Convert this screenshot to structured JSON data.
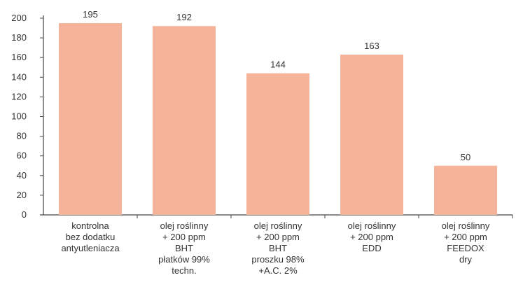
{
  "chart_data": {
    "type": "bar",
    "categories": [
      [
        "kontrolna",
        "bez dodatku",
        "antyutleniacza"
      ],
      [
        "olej roślinny",
        "+ 200 ppm",
        "BHT",
        "płatków 99%",
        "techn."
      ],
      [
        "olej roślinny",
        "+ 200 ppm",
        "BHT",
        "proszku 98%",
        "+A.C. 2%"
      ],
      [
        "olej roślinny",
        "+ 200 ppm",
        "EDD"
      ],
      [
        "olej roślinny",
        "+ 200 ppm",
        "FEEDOX",
        "dry"
      ]
    ],
    "values": [
      195,
      192,
      144,
      163,
      50
    ],
    "value_labels": [
      "195",
      "192",
      "144",
      "163",
      "50"
    ],
    "y_ticks": [
      "0",
      "20",
      "40",
      "60",
      "80",
      "100",
      "120",
      "140",
      "160",
      "180",
      "200"
    ],
    "ylim": [
      0,
      200
    ],
    "grid": false,
    "title": "",
    "xlabel": "",
    "ylabel": ""
  },
  "colors": {
    "bar": "#f5b49a",
    "axis": "#444444"
  }
}
